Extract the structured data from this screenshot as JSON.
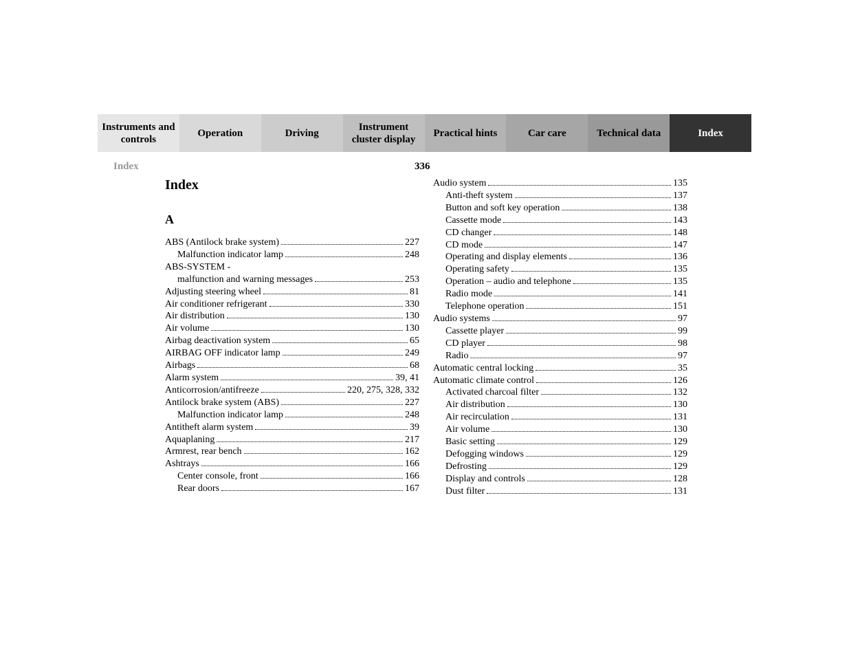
{
  "section_label": "Index",
  "page_number": "336",
  "tabs": [
    {
      "label": "Instruments and controls",
      "bg": "#e6e6e6",
      "fg": "#000000"
    },
    {
      "label": "Operation",
      "bg": "#d9d9d9",
      "fg": "#000000"
    },
    {
      "label": "Driving",
      "bg": "#cccccc",
      "fg": "#000000"
    },
    {
      "label": "Instrument cluster display",
      "bg": "#bfbfbf",
      "fg": "#000000"
    },
    {
      "label": "Practical hints",
      "bg": "#b3b3b3",
      "fg": "#000000"
    },
    {
      "label": "Car care",
      "bg": "#a6a6a6",
      "fg": "#000000"
    },
    {
      "label": "Technical data",
      "bg": "#999999",
      "fg": "#000000"
    },
    {
      "label": "Index",
      "bg": "#333333",
      "fg": "#ffffff"
    }
  ],
  "index_title": "Index",
  "letter_heading": "A",
  "left_entries": [
    {
      "term": "ABS (Antilock brake system)",
      "pages": "227",
      "level": 1
    },
    {
      "term": "Malfunction indicator lamp",
      "pages": "248",
      "level": 2
    },
    {
      "term": "ABS-SYSTEM -",
      "pages": "",
      "level": 1,
      "noleader": true
    },
    {
      "term": "malfunction and warning messages",
      "pages": "253",
      "level": 2
    },
    {
      "term": "Adjusting steering wheel",
      "pages": "81",
      "level": 1
    },
    {
      "term": "Air conditioner refrigerant",
      "pages": "330",
      "level": 1
    },
    {
      "term": "Air distribution",
      "pages": "130",
      "level": 1
    },
    {
      "term": "Air volume",
      "pages": "130",
      "level": 1
    },
    {
      "term": "Airbag deactivation system",
      "pages": "65",
      "level": 1
    },
    {
      "term": "AIRBAG OFF indicator lamp",
      "pages": "249",
      "level": 1
    },
    {
      "term": "Airbags",
      "pages": "68",
      "level": 1
    },
    {
      "term": "Alarm system",
      "pages": "39, 41",
      "level": 1
    },
    {
      "term": "Anticorrosion/antifreeze",
      "pages": "220, 275, 328, 332",
      "level": 1
    },
    {
      "term": "Antilock brake system (ABS)",
      "pages": "227",
      "level": 1
    },
    {
      "term": "Malfunction indicator lamp",
      "pages": "248",
      "level": 2
    },
    {
      "term": "Antitheft alarm system",
      "pages": "39",
      "level": 1
    },
    {
      "term": "Aquaplaning",
      "pages": "217",
      "level": 1
    },
    {
      "term": "Armrest, rear bench",
      "pages": "162",
      "level": 1
    },
    {
      "term": "Ashtrays",
      "pages": "166",
      "level": 1
    },
    {
      "term": "Center console, front",
      "pages": "166",
      "level": 2
    },
    {
      "term": "Rear doors",
      "pages": "167",
      "level": 2
    }
  ],
  "right_entries": [
    {
      "term": "Audio system",
      "pages": "135",
      "level": 1
    },
    {
      "term": "Anti-theft system",
      "pages": "137",
      "level": 2
    },
    {
      "term": "Button and soft key operation",
      "pages": "138",
      "level": 2
    },
    {
      "term": "Cassette mode",
      "pages": "143",
      "level": 2
    },
    {
      "term": "CD changer",
      "pages": "148",
      "level": 2
    },
    {
      "term": "CD mode",
      "pages": "147",
      "level": 2
    },
    {
      "term": "Operating and display elements",
      "pages": "136",
      "level": 2
    },
    {
      "term": "Operating safety",
      "pages": "135",
      "level": 2
    },
    {
      "term": "Operation – audio and telephone",
      "pages": "135",
      "level": 2
    },
    {
      "term": "Radio mode",
      "pages": "141",
      "level": 2
    },
    {
      "term": "Telephone operation",
      "pages": "151",
      "level": 2
    },
    {
      "term": "Audio systems",
      "pages": "97",
      "level": 1
    },
    {
      "term": "Cassette player",
      "pages": "99",
      "level": 2
    },
    {
      "term": "CD player",
      "pages": "98",
      "level": 2
    },
    {
      "term": "Radio",
      "pages": "97",
      "level": 2
    },
    {
      "term": "Automatic central locking",
      "pages": "35",
      "level": 1
    },
    {
      "term": "Automatic climate control",
      "pages": "126",
      "level": 1
    },
    {
      "term": "Activated charcoal filter",
      "pages": "132",
      "level": 2
    },
    {
      "term": "Air distribution",
      "pages": "130",
      "level": 2
    },
    {
      "term": "Air recirculation",
      "pages": "131",
      "level": 2
    },
    {
      "term": "Air volume",
      "pages": "130",
      "level": 2
    },
    {
      "term": "Basic setting",
      "pages": "129",
      "level": 2
    },
    {
      "term": "Defogging windows",
      "pages": "129",
      "level": 2
    },
    {
      "term": "Defrosting",
      "pages": "129",
      "level": 2
    },
    {
      "term": "Display and controls",
      "pages": "128",
      "level": 2
    },
    {
      "term": "Dust filter",
      "pages": "131",
      "level": 2
    }
  ]
}
